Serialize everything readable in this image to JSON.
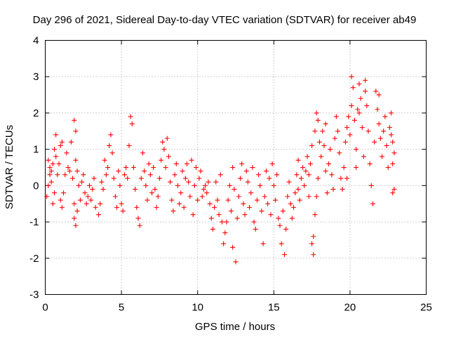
{
  "chart_data": {
    "type": "scatter",
    "title": "Day 296 of 2021, Sidereal Day-to-day VTEC variation (SDTVAR) for receiver ab49",
    "xlabel": "GPS time / hours",
    "ylabel": "SDTVAR / TECUs",
    "xlim": [
      0,
      25
    ],
    "ylim": [
      -3,
      4
    ],
    "xticks": [
      0,
      5,
      10,
      15,
      20,
      25
    ],
    "yticks": [
      -3,
      -2,
      -1,
      0,
      1,
      2,
      3,
      4
    ],
    "grid": true,
    "marker": "+",
    "color": "#ff0000",
    "series": [
      {
        "name": "SDTVAR",
        "points": [
          [
            0.1,
            -0.3
          ],
          [
            0.2,
            0.7
          ],
          [
            0.3,
            0.5
          ],
          [
            0.4,
            0.1
          ],
          [
            0.5,
            0.6
          ],
          [
            0.6,
            -0.2
          ],
          [
            0.5,
            -0.5
          ],
          [
            0.2,
            0.0
          ],
          [
            0.3,
            0.3
          ],
          [
            0.4,
            0.4
          ],
          [
            0.6,
            1.0
          ],
          [
            0.7,
            1.4
          ],
          [
            0.7,
            0.8
          ],
          [
            0.8,
            0.3
          ],
          [
            0.9,
            0.6
          ],
          [
            1.0,
            1.1
          ],
          [
            1.1,
            1.2
          ],
          [
            1.0,
            -0.4
          ],
          [
            1.1,
            -0.6
          ],
          [
            1.2,
            -0.2
          ],
          [
            1.3,
            0.3
          ],
          [
            1.4,
            0.9
          ],
          [
            1.5,
            0.5
          ],
          [
            1.6,
            0.4
          ],
          [
            1.7,
            1.2
          ],
          [
            1.8,
            0.2
          ],
          [
            1.9,
            -0.5
          ],
          [
            1.9,
            -0.9
          ],
          [
            2.0,
            -1.1
          ],
          [
            2.1,
            -0.7
          ],
          [
            1.9,
            1.8
          ],
          [
            2.0,
            1.5
          ],
          [
            2.0,
            0.7
          ],
          [
            2.1,
            0.4
          ],
          [
            2.2,
            0.0
          ],
          [
            2.3,
            -0.4
          ],
          [
            2.4,
            0.1
          ],
          [
            2.5,
            0.3
          ],
          [
            2.6,
            -0.2
          ],
          [
            2.7,
            -0.5
          ],
          [
            2.8,
            -0.3
          ],
          [
            2.9,
            0.0
          ],
          [
            3.0,
            -0.4
          ],
          [
            3.1,
            -0.1
          ],
          [
            3.2,
            0.2
          ],
          [
            3.3,
            -0.6
          ],
          [
            3.5,
            -0.8
          ],
          [
            3.6,
            -0.5
          ],
          [
            3.7,
            0.1
          ],
          [
            3.8,
            -0.1
          ],
          [
            3.9,
            0.7
          ],
          [
            4.0,
            0.3
          ],
          [
            4.1,
            0.5
          ],
          [
            4.2,
            1.1
          ],
          [
            4.3,
            1.4
          ],
          [
            4.4,
            0.9
          ],
          [
            4.5,
            0.2
          ],
          [
            4.6,
            -0.3
          ],
          [
            4.7,
            -0.6
          ],
          [
            4.8,
            0.4
          ],
          [
            4.9,
            0.0
          ],
          [
            5.0,
            -0.5
          ],
          [
            5.1,
            -0.7
          ],
          [
            5.2,
            0.3
          ],
          [
            5.3,
            0.5
          ],
          [
            5.4,
            0.2
          ],
          [
            5.5,
            1.1
          ],
          [
            5.6,
            1.9
          ],
          [
            5.7,
            1.7
          ],
          [
            5.8,
            0.5
          ],
          [
            5.9,
            -0.1
          ],
          [
            6.0,
            -0.6
          ],
          [
            6.1,
            -0.9
          ],
          [
            6.2,
            -1.1
          ],
          [
            6.3,
            0.2
          ],
          [
            6.4,
            0.9
          ],
          [
            6.5,
            0.4
          ],
          [
            6.6,
            0.0
          ],
          [
            6.7,
            -0.4
          ],
          [
            6.8,
            0.6
          ],
          [
            6.9,
            0.3
          ],
          [
            7.0,
            -0.2
          ],
          [
            7.1,
            0.5
          ],
          [
            7.2,
            -0.1
          ],
          [
            7.3,
            -0.6
          ],
          [
            7.4,
            -0.3
          ],
          [
            7.5,
            0.2
          ],
          [
            7.6,
            0.7
          ],
          [
            7.7,
            1.2
          ],
          [
            7.8,
            1.0
          ],
          [
            7.9,
            0.5
          ],
          [
            8.0,
            1.3
          ],
          [
            8.1,
            0.8
          ],
          [
            8.2,
            0.1
          ],
          [
            8.3,
            -0.4
          ],
          [
            8.4,
            -0.7
          ],
          [
            8.5,
            0.3
          ],
          [
            8.6,
            0.6
          ],
          [
            8.7,
            0.0
          ],
          [
            8.8,
            -0.5
          ],
          [
            8.9,
            -0.2
          ],
          [
            9.0,
            0.4
          ],
          [
            9.1,
            -0.6
          ],
          [
            9.2,
            0.2
          ],
          [
            9.3,
            0.6
          ],
          [
            9.4,
            0.1
          ],
          [
            9.5,
            -0.3
          ],
          [
            9.6,
            0.7
          ],
          [
            9.7,
            -0.8
          ],
          [
            9.8,
            0.0
          ],
          [
            9.9,
            0.5
          ],
          [
            10.0,
            -0.4
          ],
          [
            10.1,
            0.2
          ],
          [
            10.2,
            0.4
          ],
          [
            10.3,
            -0.3
          ],
          [
            10.4,
            -0.1
          ],
          [
            10.5,
            0.0
          ],
          [
            10.6,
            -0.2
          ],
          [
            10.7,
            0.1
          ],
          [
            10.8,
            -0.5
          ],
          [
            10.9,
            -0.9
          ],
          [
            11.0,
            -1.2
          ],
          [
            11.1,
            -0.6
          ],
          [
            11.2,
            0.1
          ],
          [
            11.3,
            -0.4
          ],
          [
            11.4,
            -0.8
          ],
          [
            11.5,
            0.3
          ],
          [
            11.6,
            -1.0
          ],
          [
            11.7,
            -1.6
          ],
          [
            11.8,
            -1.3
          ],
          [
            11.9,
            -1.0
          ],
          [
            12.0,
            -0.4
          ],
          [
            12.1,
            0.0
          ],
          [
            12.2,
            -0.7
          ],
          [
            12.3,
            0.5
          ],
          [
            12.4,
            -0.1
          ],
          [
            12.3,
            -1.7
          ],
          [
            12.5,
            -2.1
          ],
          [
            12.6,
            -0.9
          ],
          [
            12.7,
            -0.3
          ],
          [
            12.8,
            0.2
          ],
          [
            12.9,
            0.6
          ],
          [
            13.0,
            -0.5
          ],
          [
            13.1,
            -0.8
          ],
          [
            13.2,
            0.4
          ],
          [
            13.3,
            0.1
          ],
          [
            13.4,
            -0.6
          ],
          [
            13.5,
            -0.2
          ],
          [
            13.6,
            0.5
          ],
          [
            13.7,
            -1.0
          ],
          [
            13.8,
            -1.2
          ],
          [
            13.9,
            -0.4
          ],
          [
            14.0,
            0.3
          ],
          [
            14.1,
            0.0
          ],
          [
            14.2,
            -0.7
          ],
          [
            14.3,
            -1.6
          ],
          [
            14.4,
            -0.3
          ],
          [
            14.5,
            0.4
          ],
          [
            14.6,
            -0.5
          ],
          [
            14.7,
            0.2
          ],
          [
            14.8,
            -0.8
          ],
          [
            14.9,
            0.6
          ],
          [
            15.0,
            0.0
          ],
          [
            15.1,
            -0.4
          ],
          [
            15.2,
            0.3
          ],
          [
            15.3,
            -0.9
          ],
          [
            15.4,
            -1.1
          ],
          [
            15.5,
            -1.6
          ],
          [
            15.6,
            -0.7
          ],
          [
            15.7,
            -1.9
          ],
          [
            15.8,
            -1.2
          ],
          [
            15.9,
            -0.3
          ],
          [
            16.0,
            0.1
          ],
          [
            16.1,
            -0.5
          ],
          [
            16.2,
            -0.9
          ],
          [
            16.3,
            -0.6
          ],
          [
            16.4,
            -0.2
          ],
          [
            16.5,
            0.3
          ],
          [
            16.6,
            -0.1
          ],
          [
            16.7,
            -0.4
          ],
          [
            16.8,
            0.2
          ],
          [
            16.9,
            0.5
          ],
          [
            17.0,
            0.0
          ],
          [
            17.1,
            0.4
          ],
          [
            17.2,
            0.8
          ],
          [
            17.3,
            0.3
          ],
          [
            17.4,
            0.6
          ],
          [
            17.5,
            1.1
          ],
          [
            17.5,
            -1.6
          ],
          [
            17.6,
            -1.9
          ],
          [
            17.6,
            -1.4
          ],
          [
            17.7,
            -0.8
          ],
          [
            17.8,
            -0.3
          ],
          [
            17.9,
            0.2
          ],
          [
            17.7,
            1.5
          ],
          [
            17.8,
            2.0
          ],
          [
            17.9,
            1.8
          ],
          [
            18.0,
            1.2
          ],
          [
            18.1,
            0.8
          ],
          [
            18.2,
            1.5
          ],
          [
            18.3,
            1.1
          ],
          [
            18.4,
            0.4
          ],
          [
            18.5,
            -0.2
          ],
          [
            18.6,
            0.6
          ],
          [
            18.7,
            1.0
          ],
          [
            18.8,
            0.3
          ],
          [
            18.9,
            -0.1
          ],
          [
            19.0,
            1.3
          ],
          [
            19.1,
            1.9
          ],
          [
            19.2,
            1.5
          ],
          [
            19.3,
            0.9
          ],
          [
            19.4,
            0.2
          ],
          [
            19.5,
            -0.1
          ],
          [
            19.6,
            0.5
          ],
          [
            19.7,
            1.2
          ],
          [
            19.8,
            1.6
          ],
          [
            19.9,
            1.9
          ],
          [
            20.0,
            1.4
          ],
          [
            20.1,
            2.2
          ],
          [
            20.1,
            3.0
          ],
          [
            20.2,
            2.7
          ],
          [
            20.3,
            1.8
          ],
          [
            20.4,
            1.0
          ],
          [
            20.4,
            0.5
          ],
          [
            20.5,
            2.1
          ],
          [
            20.6,
            2.8
          ],
          [
            20.7,
            2.4
          ],
          [
            20.8,
            1.6
          ],
          [
            20.9,
            0.8
          ],
          [
            21.0,
            2.6
          ],
          [
            21.1,
            2.2
          ],
          [
            21.2,
            1.5
          ],
          [
            21.3,
            0.6
          ],
          [
            21.4,
            0.0
          ],
          [
            21.5,
            -0.5
          ],
          [
            21.6,
            1.2
          ],
          [
            21.7,
            2.6
          ],
          [
            21.8,
            2.1
          ],
          [
            21.9,
            1.7
          ],
          [
            22.0,
            1.3
          ],
          [
            22.1,
            0.8
          ],
          [
            22.2,
            1.5
          ],
          [
            22.3,
            1.9
          ],
          [
            22.4,
            1.1
          ],
          [
            22.5,
            0.5
          ],
          [
            22.6,
            1.6
          ],
          [
            22.7,
            2.0
          ],
          [
            22.8,
            1.2
          ],
          [
            22.8,
            0.6
          ],
          [
            22.9,
            -0.1
          ],
          [
            22.8,
            -0.2
          ],
          [
            22.9,
            0.9
          ],
          [
            22.7,
            1.4
          ],
          [
            21.9,
            2.5
          ],
          [
            21.0,
            2.9
          ],
          [
            20.6,
            2.0
          ],
          [
            19.8,
            0.2
          ],
          [
            18.4,
            1.7
          ],
          [
            17.3,
            -0.3
          ],
          [
            16.6,
            0.7
          ]
        ]
      }
    ]
  }
}
